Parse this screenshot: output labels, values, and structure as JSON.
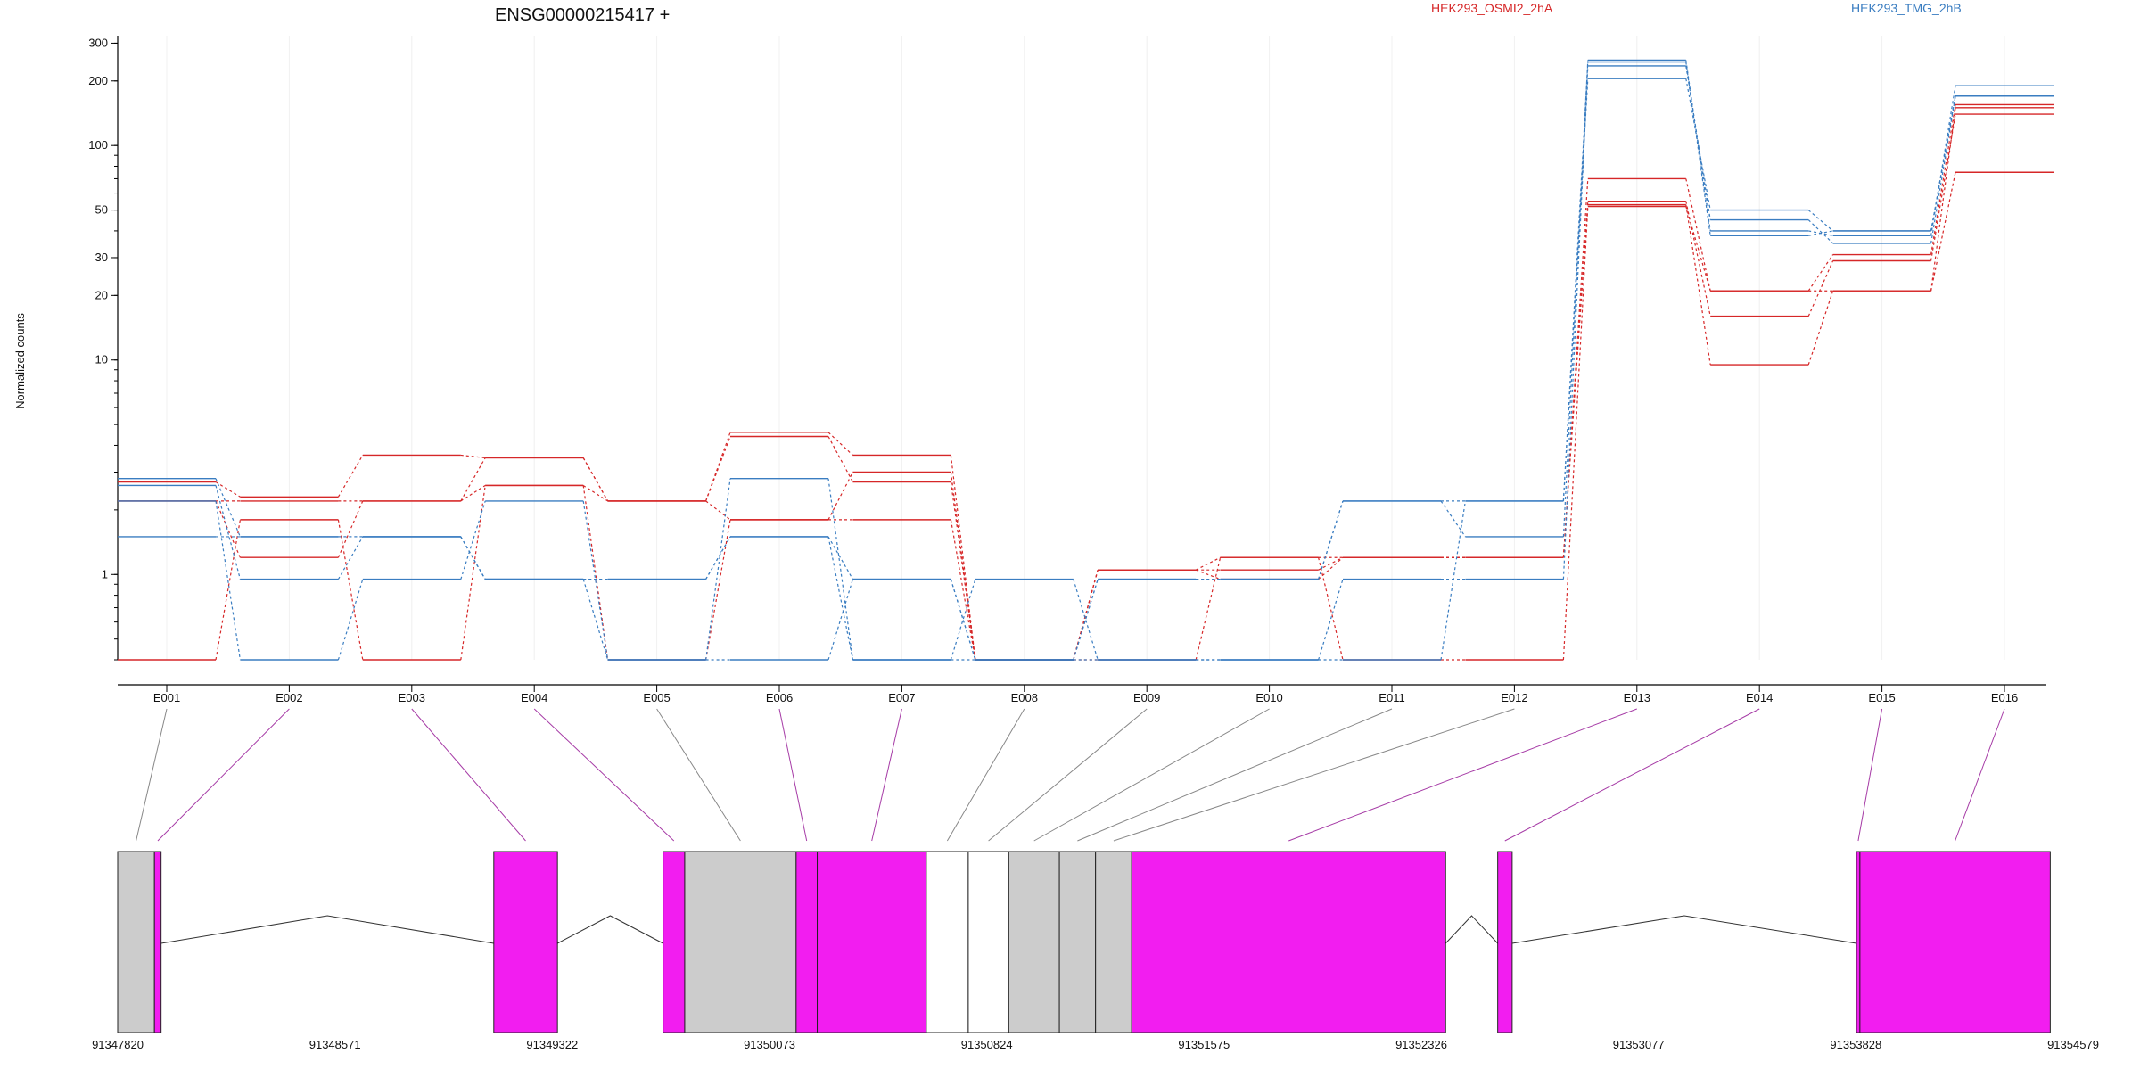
{
  "title": "ENSG00000215417 +",
  "ylabel": "Normalized counts",
  "legend": [
    {
      "label": "HEK293_OSMI2_2hA",
      "color": "#d62728"
    },
    {
      "label": "HEK293_TMG_2hB",
      "color": "#3a7dc1"
    }
  ],
  "colors": {
    "exon_tested": "#f21df0",
    "exon_other": "#cccccc",
    "connector_tested": "#a63ba6",
    "connector_other": "#888888"
  },
  "chart_data": {
    "type": "line",
    "yscale": "log",
    "ylim": [
      0.4,
      310
    ],
    "grid": true,
    "legend_position": "top",
    "categories": [
      "E001",
      "E002",
      "E003",
      "E004",
      "E005",
      "E006",
      "E007",
      "E008",
      "E009",
      "E010",
      "E011",
      "E012",
      "E013",
      "E014",
      "E015",
      "E016"
    ],
    "yticks": [
      1,
      10,
      20,
      30,
      50,
      100,
      200,
      300
    ],
    "series": [
      {
        "group": 0,
        "values": [
          2.7,
          2.3,
          3.6,
          3.5,
          2.2,
          4.6,
          3.6,
          0.4,
          1.05,
          1.2,
          1.2,
          1.2,
          70,
          21,
          31,
          155
        ]
      },
      {
        "group": 0,
        "values": [
          2.2,
          2.2,
          2.2,
          3.5,
          2.2,
          4.4,
          2.7,
          0.4,
          1.05,
          1.05,
          1.2,
          1.2,
          55,
          16,
          29,
          140
        ]
      },
      {
        "group": 0,
        "values": [
          2.2,
          1.2,
          2.2,
          2.6,
          0.4,
          1.8,
          1.8,
          0.4,
          1.05,
          0.95,
          1.2,
          1.2,
          53,
          9.5,
          21,
          75
        ]
      },
      {
        "group": 0,
        "values": [
          0.4,
          1.8,
          0.4,
          2.6,
          2.2,
          1.8,
          3.0,
          0.4,
          0.4,
          1.2,
          0.4,
          0.4,
          52,
          21,
          21,
          150
        ]
      },
      {
        "group": 1,
        "values": [
          2.8,
          1.5,
          1.5,
          0.95,
          0.95,
          1.5,
          0.95,
          0.4,
          0.95,
          0.95,
          2.2,
          1.5,
          250,
          40,
          38,
          190
        ]
      },
      {
        "group": 1,
        "values": [
          2.6,
          0.95,
          1.5,
          0.95,
          0.95,
          1.5,
          0.4,
          0.95,
          0.4,
          0.4,
          0.95,
          0.95,
          235,
          45,
          35,
          170
        ]
      },
      {
        "group": 1,
        "values": [
          2.2,
          0.4,
          0.95,
          2.2,
          0.4,
          2.8,
          0.4,
          0.4,
          0.4,
          0.4,
          0.4,
          2.2,
          205,
          50,
          40,
          170
        ]
      },
      {
        "group": 1,
        "values": [
          1.5,
          1.5,
          1.5,
          0.95,
          0.4,
          0.4,
          0.95,
          0.4,
          0.95,
          0.95,
          2.2,
          2.2,
          245,
          38,
          40,
          170
        ]
      }
    ]
  },
  "gene_model": {
    "coordinate_ticks": [
      "91347820",
      "91348571",
      "91349322",
      "91350073",
      "91350824",
      "91351575",
      "91352326",
      "91353077",
      "91353828",
      "91354579"
    ],
    "coord_start": 91347820,
    "coord_end": 91354579,
    "exons": [
      {
        "start": 91347820,
        "end": 91347947,
        "tested": false
      },
      {
        "start": 91347947,
        "end": 91347970,
        "tested": true
      },
      {
        "start": 91349120,
        "end": 91349340,
        "tested": true
      },
      {
        "start": 91349705,
        "end": 91349780,
        "tested": true
      },
      {
        "start": 91349780,
        "end": 91350165,
        "tested": false
      },
      {
        "start": 91350165,
        "end": 91350238,
        "tested": true
      },
      {
        "start": 91350238,
        "end": 91350615,
        "tested": true
      },
      {
        "start": 91350615,
        "end": 91350760,
        "tested": false,
        "blank": true
      },
      {
        "start": 91350760,
        "end": 91350900,
        "tested": false,
        "blank": true
      },
      {
        "start": 91350900,
        "end": 91351075,
        "tested": false
      },
      {
        "start": 91351075,
        "end": 91351200,
        "tested": false
      },
      {
        "start": 91351200,
        "end": 91351325,
        "tested": false
      },
      {
        "start": 91351325,
        "end": 91352410,
        "tested": true
      },
      {
        "start": 91352590,
        "end": 91352640,
        "tested": true
      },
      {
        "start": 91353830,
        "end": 91353842,
        "tested": true
      },
      {
        "start": 91353842,
        "end": 91354500,
        "tested": true
      }
    ],
    "introns": [
      [
        91347970,
        91349120
      ],
      [
        91349340,
        91349705
      ],
      [
        91352410,
        91352590
      ],
      [
        91352640,
        91353830
      ]
    ]
  }
}
